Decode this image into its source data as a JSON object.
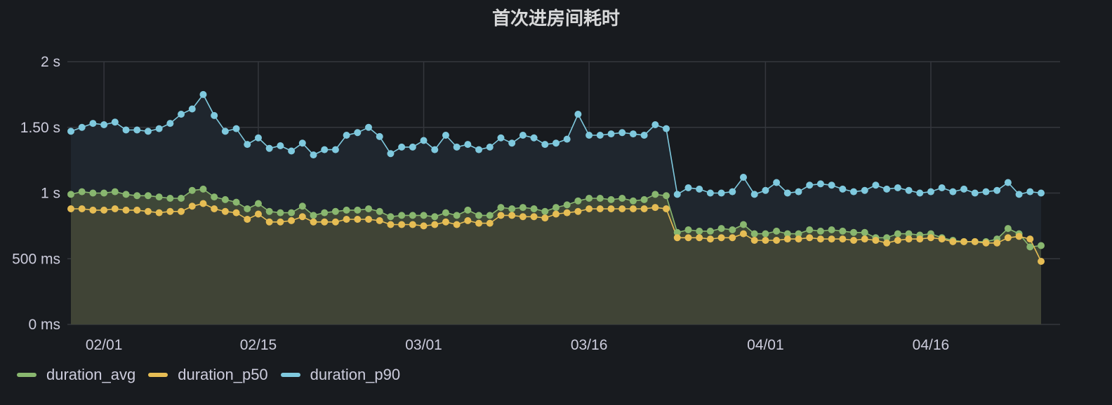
{
  "chart_data": {
    "type": "line",
    "title": "首次进房间耗时",
    "y_ticks": [
      "0 ms",
      "500 ms",
      "1 s",
      "1.50 s",
      "2 s"
    ],
    "ylim_ms": [
      0,
      2000
    ],
    "x_tick_labels": [
      "02/01",
      "02/15",
      "03/01",
      "03/16",
      "04/01",
      "04/16"
    ],
    "x_tick_dates": [
      "2024-02-01",
      "2024-02-15",
      "2024-03-01",
      "2024-03-16",
      "2024-04-01",
      "2024-04-16"
    ],
    "x_start": "2024-01-29",
    "grid": true,
    "legend_position": "bottom-left",
    "series": [
      {
        "name": "duration_p90",
        "color": "#7fc9de",
        "fill": "#1f262e",
        "values_ms": [
          1470,
          1500,
          1530,
          1520,
          1540,
          1480,
          1480,
          1470,
          1490,
          1530,
          1600,
          1640,
          1750,
          1590,
          1470,
          1490,
          1370,
          1420,
          1340,
          1360,
          1320,
          1380,
          1290,
          1330,
          1330,
          1440,
          1460,
          1500,
          1430,
          1300,
          1350,
          1350,
          1400,
          1330,
          1440,
          1350,
          1370,
          1330,
          1350,
          1420,
          1380,
          1440,
          1420,
          1370,
          1380,
          1410,
          1600,
          1440,
          1440,
          1450,
          1460,
          1450,
          1440,
          1520,
          1490,
          990,
          1040,
          1030,
          1000,
          1000,
          1010,
          1120,
          990,
          1020,
          1080,
          1000,
          1010,
          1060,
          1070,
          1060,
          1030,
          1010,
          1020,
          1060,
          1030,
          1040,
          1020,
          1000,
          1010,
          1040,
          1010,
          1030,
          1000,
          1010,
          1020,
          1080,
          990,
          1010,
          1000
        ]
      },
      {
        "name": "duration_avg",
        "color": "#89b76f",
        "fill": "#3e4738",
        "values_ms": [
          990,
          1010,
          1000,
          1000,
          1010,
          990,
          980,
          980,
          970,
          960,
          960,
          1020,
          1030,
          970,
          950,
          930,
          880,
          920,
          860,
          850,
          850,
          900,
          830,
          850,
          860,
          870,
          870,
          880,
          860,
          820,
          830,
          830,
          830,
          820,
          850,
          830,
          870,
          830,
          830,
          890,
          880,
          890,
          880,
          860,
          890,
          910,
          940,
          960,
          960,
          950,
          960,
          940,
          950,
          990,
          980,
          700,
          720,
          710,
          710,
          730,
          720,
          760,
          690,
          690,
          710,
          690,
          690,
          720,
          710,
          720,
          710,
          700,
          700,
          660,
          660,
          690,
          690,
          680,
          690,
          660,
          640,
          630,
          630,
          630,
          650,
          730,
          690,
          590,
          600
        ]
      },
      {
        "name": "duration_p50",
        "color": "#e6bd54",
        "fill": "#404436",
        "values_ms": [
          880,
          880,
          870,
          870,
          880,
          870,
          870,
          860,
          850,
          860,
          860,
          900,
          920,
          880,
          860,
          850,
          800,
          840,
          780,
          780,
          790,
          820,
          780,
          780,
          780,
          800,
          800,
          800,
          790,
          760,
          760,
          760,
          750,
          760,
          780,
          760,
          790,
          770,
          770,
          830,
          830,
          820,
          820,
          810,
          840,
          850,
          860,
          880,
          880,
          880,
          880,
          880,
          880,
          890,
          880,
          660,
          660,
          660,
          650,
          660,
          660,
          690,
          640,
          640,
          640,
          650,
          650,
          660,
          650,
          650,
          650,
          640,
          650,
          640,
          620,
          640,
          650,
          650,
          660,
          650,
          630,
          630,
          630,
          620,
          620,
          660,
          670,
          650,
          480
        ]
      }
    ]
  }
}
